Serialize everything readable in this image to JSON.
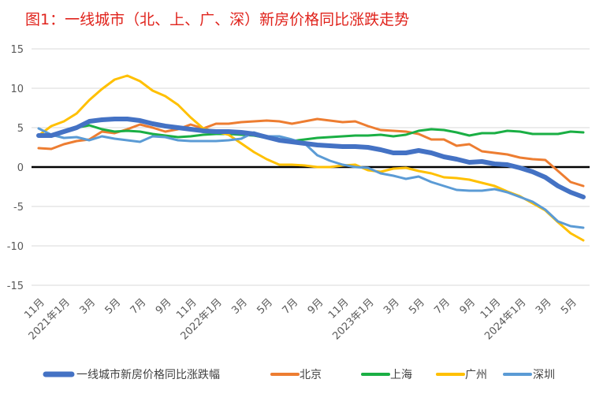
{
  "chart_data": {
    "type": "line",
    "title": "图1：一线城市（北、上、广、深）新房价格同比涨跌走势",
    "xlabel": "",
    "ylabel": "",
    "ylim": [
      -15,
      15
    ],
    "yticks": [
      15,
      10,
      5,
      0,
      -5,
      -10,
      -15
    ],
    "grid": true,
    "legend": "bottom",
    "x_tick_labels": [
      "11月",
      "2021年1月",
      "3月",
      "5月",
      "7月",
      "9月",
      "11月",
      "2022年1月",
      "3月",
      "5月",
      "7月",
      "9月",
      "11月",
      "2023年1月",
      "3月",
      "5月",
      "7月",
      "9月",
      "11月",
      "2024年1月",
      "3月",
      "5月"
    ],
    "series": [
      {
        "name": "一线城市新房价格同比涨跌幅",
        "color": "#4472c4",
        "width": 6,
        "values": [
          4.0,
          4.0,
          4.5,
          5.0,
          5.8,
          6.0,
          6.1,
          6.1,
          5.9,
          5.5,
          5.2,
          5.0,
          4.8,
          4.6,
          4.5,
          4.5,
          4.4,
          4.2,
          3.8,
          3.4,
          3.2,
          3.0,
          2.8,
          2.7,
          2.6,
          2.6,
          2.5,
          2.2,
          1.8,
          1.8,
          2.1,
          1.8,
          1.3,
          1.0,
          0.6,
          0.7,
          0.4,
          0.3,
          -0.1,
          -0.6,
          -1.3,
          -2.4,
          -3.2,
          -3.8
        ]
      },
      {
        "name": "北京",
        "color": "#ed7d31",
        "width": 3,
        "values": [
          2.4,
          2.3,
          2.9,
          3.3,
          3.5,
          4.5,
          4.3,
          4.8,
          5.4,
          5.0,
          4.5,
          4.8,
          5.4,
          4.9,
          5.5,
          5.5,
          5.7,
          5.8,
          5.9,
          5.8,
          5.5,
          5.8,
          6.1,
          5.9,
          5.7,
          5.8,
          5.2,
          4.7,
          4.6,
          4.5,
          4.2,
          3.5,
          3.5,
          2.7,
          2.9,
          2.0,
          1.8,
          1.6,
          1.2,
          1.0,
          0.9,
          -0.5,
          -1.9,
          -2.4
        ]
      },
      {
        "name": "上海",
        "color": "#1aaf44",
        "width": 3,
        "values": [
          4.1,
          4.0,
          4.5,
          5.0,
          5.3,
          4.8,
          4.5,
          4.6,
          4.5,
          4.2,
          4.0,
          3.8,
          3.9,
          4.1,
          4.2,
          4.2,
          4.1,
          4.0,
          3.7,
          3.4,
          3.3,
          3.5,
          3.7,
          3.8,
          3.9,
          4.0,
          4.0,
          4.1,
          3.9,
          4.1,
          4.6,
          4.8,
          4.7,
          4.4,
          4.0,
          4.3,
          4.3,
          4.6,
          4.5,
          4.2,
          4.2,
          4.2,
          4.5,
          4.4
        ]
      },
      {
        "name": "广州",
        "color": "#ffc000",
        "width": 3,
        "values": [
          4.0,
          5.2,
          5.8,
          6.8,
          8.5,
          9.9,
          11.1,
          11.6,
          10.9,
          9.7,
          9.0,
          7.9,
          6.3,
          4.9,
          4.5,
          4.1,
          3.0,
          1.9,
          1.0,
          0.3,
          0.3,
          0.2,
          0.0,
          0.0,
          0.2,
          0.3,
          -0.4,
          -0.6,
          -0.2,
          -0.1,
          -0.5,
          -0.8,
          -1.3,
          -1.4,
          -1.6,
          -2.0,
          -2.4,
          -3.1,
          -3.7,
          -4.6,
          -5.5,
          -7.0,
          -8.4,
          -9.3
        ]
      },
      {
        "name": "深圳",
        "color": "#5b9bd5",
        "width": 3,
        "values": [
          4.9,
          4.1,
          3.7,
          3.8,
          3.4,
          3.9,
          3.6,
          3.4,
          3.2,
          3.9,
          3.8,
          3.4,
          3.3,
          3.3,
          3.3,
          3.4,
          3.6,
          4.4,
          3.9,
          3.9,
          3.5,
          3.0,
          1.5,
          0.8,
          0.3,
          0.0,
          -0.1,
          -0.8,
          -1.1,
          -1.5,
          -1.2,
          -1.9,
          -2.4,
          -2.9,
          -3.0,
          -3.0,
          -2.8,
          -3.2,
          -3.8,
          -4.4,
          -5.4,
          -6.9,
          -7.5,
          -7.7
        ]
      }
    ]
  }
}
